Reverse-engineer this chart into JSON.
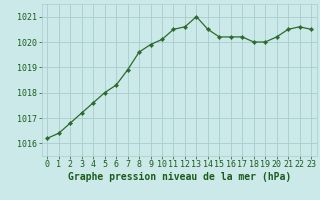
{
  "x": [
    0,
    1,
    2,
    3,
    4,
    5,
    6,
    7,
    8,
    9,
    10,
    11,
    12,
    13,
    14,
    15,
    16,
    17,
    18,
    19,
    20,
    21,
    22,
    23
  ],
  "y": [
    1016.2,
    1016.4,
    1016.8,
    1017.2,
    1017.6,
    1018.0,
    1018.3,
    1018.9,
    1019.6,
    1019.9,
    1020.1,
    1020.5,
    1020.6,
    1021.0,
    1020.5,
    1020.2,
    1020.2,
    1020.2,
    1020.0,
    1020.0,
    1020.2,
    1020.5,
    1020.6,
    1020.5
  ],
  "line_color": "#2d6a2d",
  "marker": "D",
  "marker_size": 2.2,
  "bg_color": "#cce9ea",
  "grid_color": "#aacccc",
  "xlabel": "Graphe pression niveau de la mer (hPa)",
  "xlabel_color": "#1a5c1a",
  "xlabel_fontsize": 7,
  "tick_color": "#1a5c1a",
  "tick_fontsize": 6,
  "ylim": [
    1015.5,
    1021.5
  ],
  "yticks": [
    1016,
    1017,
    1018,
    1019,
    1020,
    1021
  ],
  "xlim": [
    -0.5,
    23.5
  ],
  "xticks": [
    0,
    1,
    2,
    3,
    4,
    5,
    6,
    7,
    8,
    9,
    10,
    11,
    12,
    13,
    14,
    15,
    16,
    17,
    18,
    19,
    20,
    21,
    22,
    23
  ]
}
